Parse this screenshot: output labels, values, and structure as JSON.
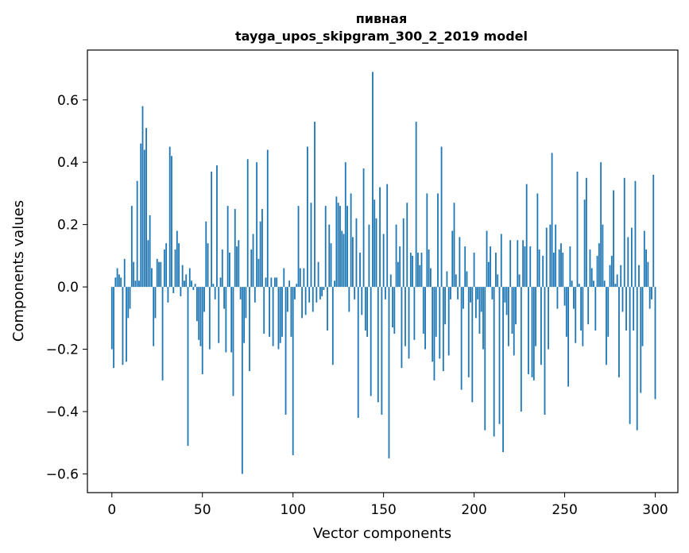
{
  "chart_data": {
    "type": "bar",
    "title": "пивная",
    "subtitle": "tayga_upos_skipgram_300_2_2019 model",
    "xlabel": "Vector components",
    "ylabel": "Components values",
    "xlim": [
      -13.5,
      312.5
    ],
    "ylim": [
      -0.66,
      0.76
    ],
    "xticks": [
      0,
      50,
      100,
      150,
      200,
      250,
      300
    ],
    "yticks": [
      -0.6,
      -0.4,
      -0.2,
      0.0,
      0.2,
      0.4,
      0.6
    ],
    "ytick_labels": [
      "−0.6",
      "−0.4",
      "−0.2",
      "0.0",
      "0.2",
      "0.4",
      "0.6"
    ],
    "bar_color": "#1f77b4",
    "grid": false,
    "values": [
      -0.2,
      -0.26,
      0.03,
      0.06,
      0.04,
      0.03,
      -0.25,
      0.09,
      -0.24,
      -0.1,
      -0.07,
      0.26,
      0.08,
      0.02,
      0.34,
      0.02,
      0.46,
      0.58,
      0.44,
      0.51,
      0.15,
      0.23,
      0.06,
      -0.19,
      -0.1,
      0.09,
      0.08,
      0.08,
      -0.3,
      0.12,
      0.14,
      -0.05,
      0.45,
      0.42,
      -0.02,
      0.12,
      0.18,
      0.14,
      -0.03,
      0.07,
      0.02,
      0.04,
      -0.51,
      0.06,
      0.02,
      -0.01,
      0.01,
      -0.11,
      -0.17,
      -0.19,
      -0.28,
      -0.08,
      0.21,
      0.14,
      -0.2,
      0.37,
      0.01,
      -0.04,
      0.39,
      -0.18,
      0.03,
      0.12,
      -0.07,
      -0.21,
      0.26,
      0.11,
      -0.21,
      -0.35,
      0.25,
      0.13,
      0.15,
      -0.04,
      -0.6,
      -0.18,
      -0.1,
      0.41,
      -0.27,
      0.12,
      0.17,
      -0.05,
      0.4,
      0.09,
      0.21,
      0.25,
      -0.15,
      0.03,
      0.44,
      -0.16,
      0.03,
      -0.19,
      0.03,
      0.03,
      -0.2,
      -0.18,
      -0.16,
      0.06,
      -0.41,
      -0.08,
      0.02,
      -0.16,
      -0.54,
      -0.04,
      0.01,
      0.26,
      0.06,
      -0.1,
      0.06,
      -0.09,
      0.45,
      -0.05,
      0.27,
      -0.08,
      0.53,
      -0.05,
      0.08,
      -0.04,
      -0.03,
      -0.01,
      0.26,
      -0.14,
      0.2,
      0.14,
      -0.25,
      0.02,
      0.29,
      0.27,
      0.26,
      0.18,
      0.17,
      0.4,
      0.26,
      -0.08,
      0.3,
      0.16,
      -0.04,
      0.22,
      -0.42,
      0.11,
      -0.09,
      0.38,
      -0.14,
      -0.16,
      0.2,
      -0.35,
      0.69,
      0.28,
      0.22,
      -0.37,
      0.32,
      -0.41,
      0.17,
      -0.04,
      0.33,
      -0.55,
      0.04,
      -0.13,
      -0.15,
      0.2,
      0.08,
      0.13,
      -0.26,
      0.22,
      -0.19,
      0.27,
      -0.23,
      0.11,
      0.1,
      -0.17,
      0.53,
      0.11,
      0.07,
      0.11,
      -0.15,
      -0.2,
      0.3,
      0.12,
      0.06,
      -0.24,
      -0.3,
      -0.16,
      0.3,
      -0.23,
      0.45,
      -0.27,
      -0.12,
      0.05,
      -0.22,
      -0.04,
      0.18,
      0.27,
      0.04,
      -0.04,
      0.16,
      -0.33,
      -0.07,
      0.13,
      0.05,
      -0.29,
      -0.05,
      -0.37,
      0.11,
      -0.1,
      -0.04,
      -0.15,
      -0.08,
      -0.2,
      -0.46,
      0.18,
      0.08,
      0.13,
      -0.04,
      -0.48,
      0.11,
      0.04,
      -0.44,
      0.17,
      -0.53,
      -0.05,
      -0.09,
      -0.19,
      0.15,
      -0.15,
      -0.22,
      -0.12,
      0.15,
      0.04,
      -0.4,
      0.15,
      0.13,
      0.33,
      -0.28,
      0.13,
      -0.29,
      -0.3,
      -0.19,
      0.3,
      0.12,
      -0.25,
      0.1,
      -0.41,
      0.19,
      -0.2,
      0.2,
      0.43,
      0.11,
      0.2,
      -0.07,
      0.12,
      0.14,
      0.11,
      -0.06,
      -0.16,
      -0.32,
      0.13,
      0.02,
      -0.07,
      -0.18,
      0.37,
      0.01,
      -0.14,
      -0.19,
      0.28,
      0.35,
      -0.12,
      0.12,
      0.06,
      0.02,
      -0.14,
      0.1,
      0.14,
      0.4,
      0.2,
      0.02,
      -0.25,
      -0.16,
      0.07,
      0.1,
      0.31,
      0.01,
      0.04,
      -0.29,
      0.07,
      -0.08,
      0.35,
      -0.14,
      0.16,
      -0.44,
      0.19,
      -0.14,
      0.34,
      -0.46,
      0.07,
      -0.34,
      -0.19,
      0.18,
      0.12,
      0.08,
      -0.07,
      -0.04,
      0.36,
      -0.36
    ]
  }
}
